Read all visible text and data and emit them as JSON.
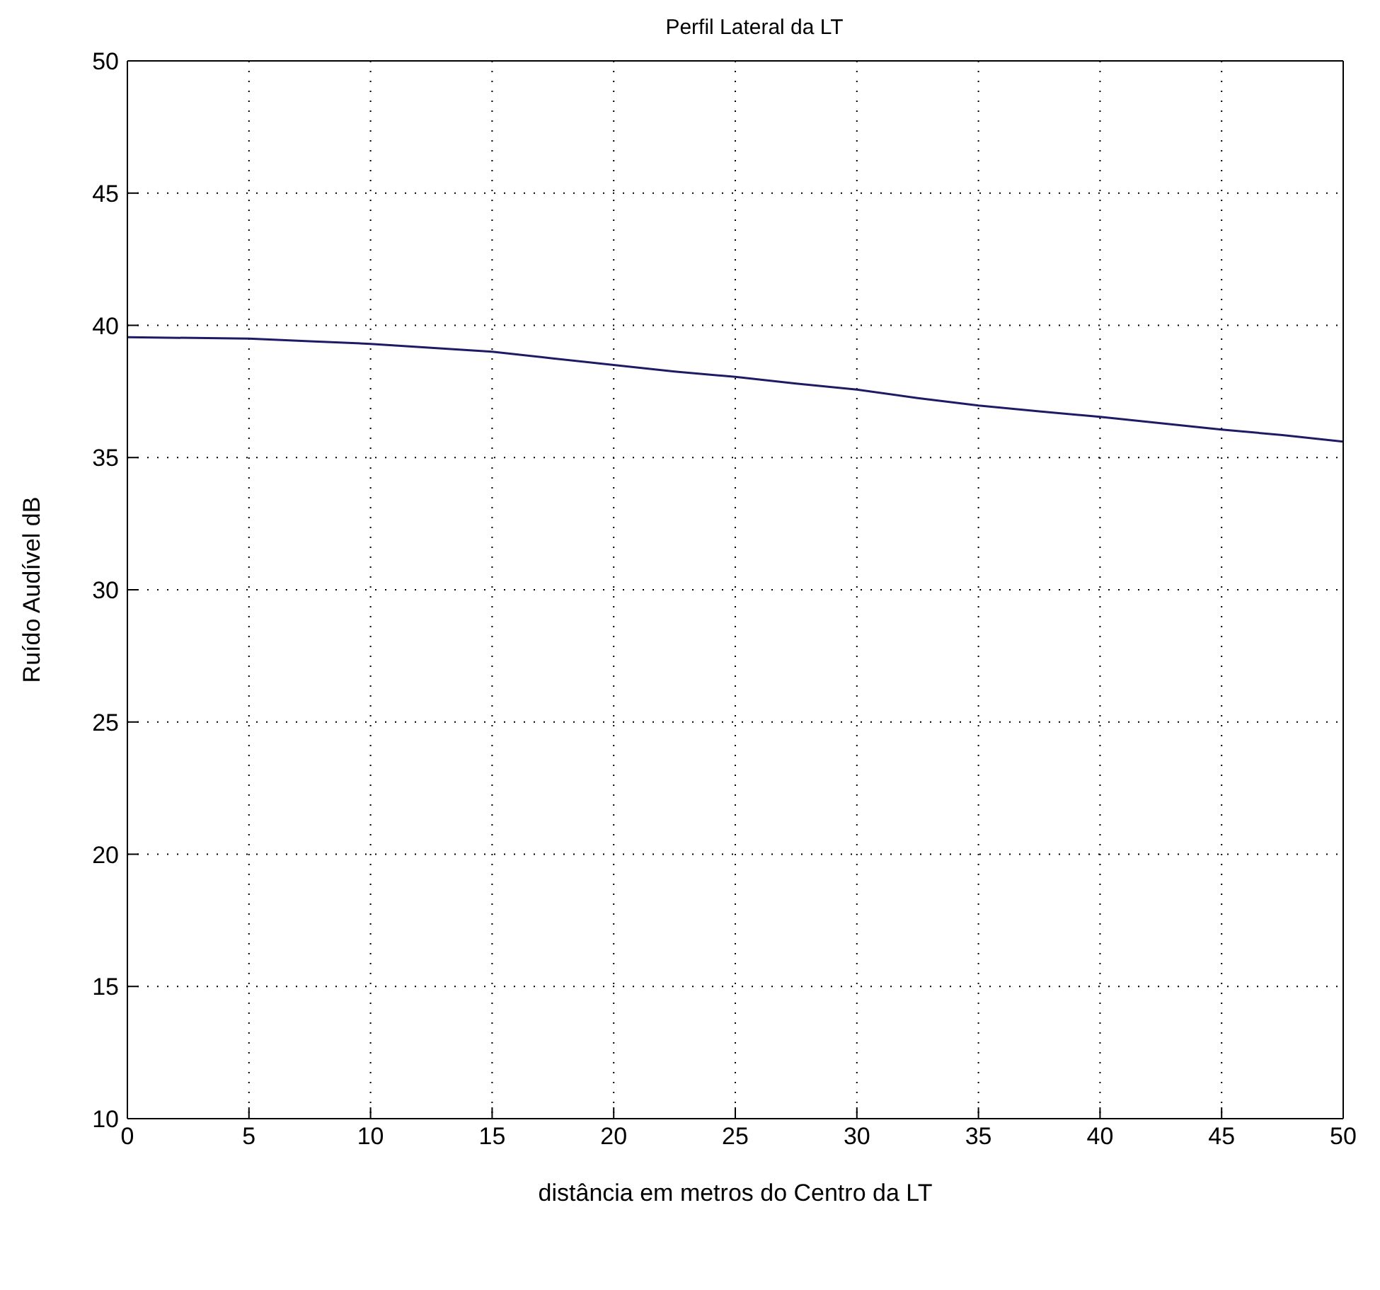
{
  "chart_data": {
    "type": "line",
    "title": "Perfil Lateral da LT",
    "xlabel": "distância em metros do Centro da LT",
    "ylabel": "Ruído Audível dB",
    "x": [
      0,
      5,
      7.5,
      10,
      12.5,
      15,
      17.5,
      20,
      22.5,
      25,
      27.5,
      30,
      32.5,
      35,
      37.5,
      40,
      42.5,
      45,
      47.5,
      50
    ],
    "series": [
      {
        "color": "#1f1a66",
        "values": [
          39.55,
          39.5,
          39.4,
          39.3,
          39.15,
          39.0,
          38.75,
          38.5,
          38.25,
          38.05,
          37.8,
          37.57,
          37.25,
          36.97,
          36.75,
          36.54,
          36.3,
          36.06,
          35.85,
          35.6
        ]
      }
    ],
    "xlim": [
      0,
      50
    ],
    "xticks": [
      0,
      5,
      10,
      15,
      20,
      25,
      30,
      35,
      40,
      45,
      50
    ],
    "ylim": [
      10,
      50
    ],
    "yticks": [
      10,
      15,
      20,
      25,
      30,
      35,
      40,
      45,
      50
    ],
    "grid": true,
    "marker": "none",
    "line_style": "solid"
  }
}
